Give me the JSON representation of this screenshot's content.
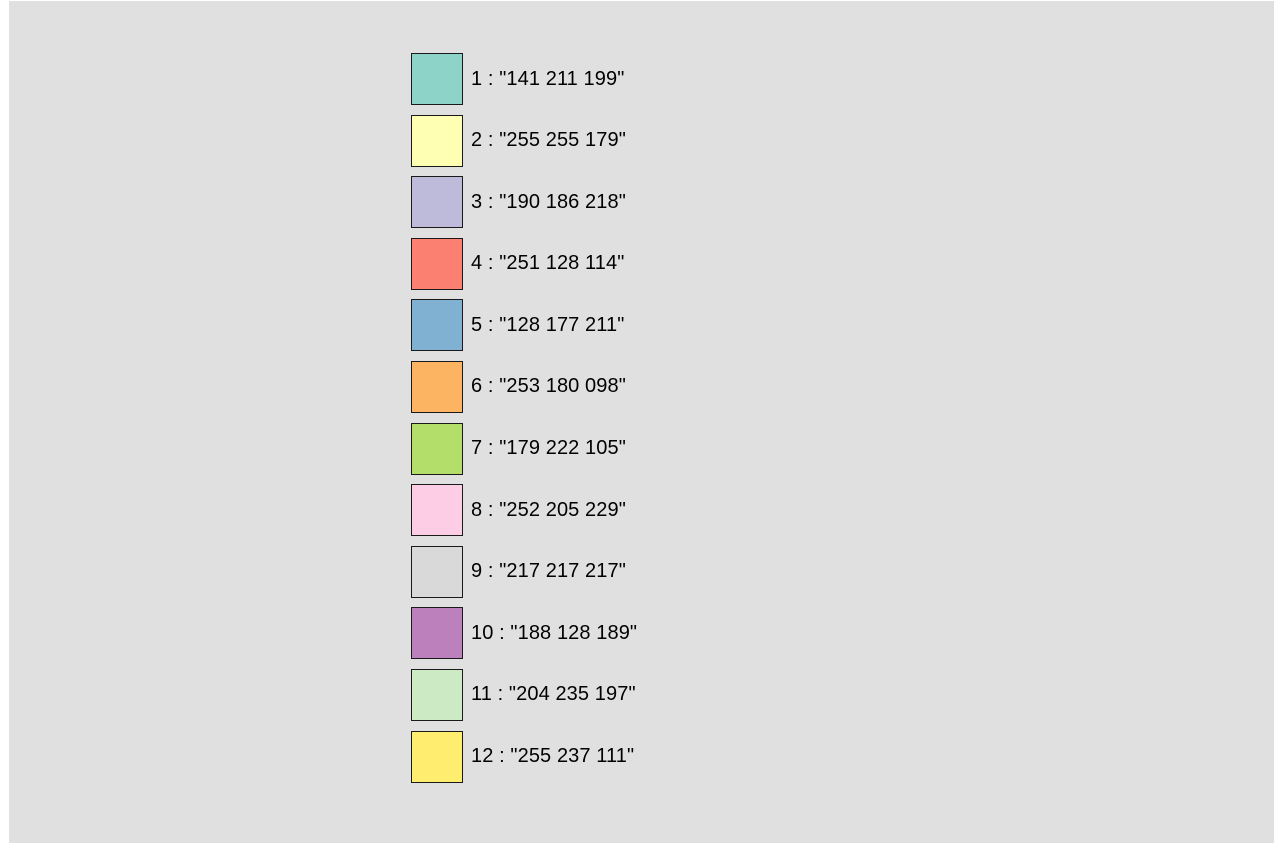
{
  "swatches": [
    {
      "label": "1 : \"141 211 199\"",
      "color": "#8dd3c7"
    },
    {
      "label": "2 : \"255 255 179\"",
      "color": "#ffffb3"
    },
    {
      "label": "3 : \"190 186 218\"",
      "color": "#bebada"
    },
    {
      "label": "4 : \"251 128 114\"",
      "color": "#fb8072"
    },
    {
      "label": "5 : \"128 177 211\"",
      "color": "#80b1d3"
    },
    {
      "label": "6 : \"253 180 098\"",
      "color": "#fdb462"
    },
    {
      "label": "7 : \"179 222 105\"",
      "color": "#b3de69"
    },
    {
      "label": "8 : \"252 205 229\"",
      "color": "#fccde5"
    },
    {
      "label": "9 : \"217 217 217\"",
      "color": "#d9d9d9"
    },
    {
      "label": "10 : \"188 128 189\"",
      "color": "#bc80bd"
    },
    {
      "label": "11 : \"204 235 197\"",
      "color": "#ccebc5"
    },
    {
      "label": "12 : \"255 237 111\"",
      "color": "#ffed6f"
    }
  ]
}
